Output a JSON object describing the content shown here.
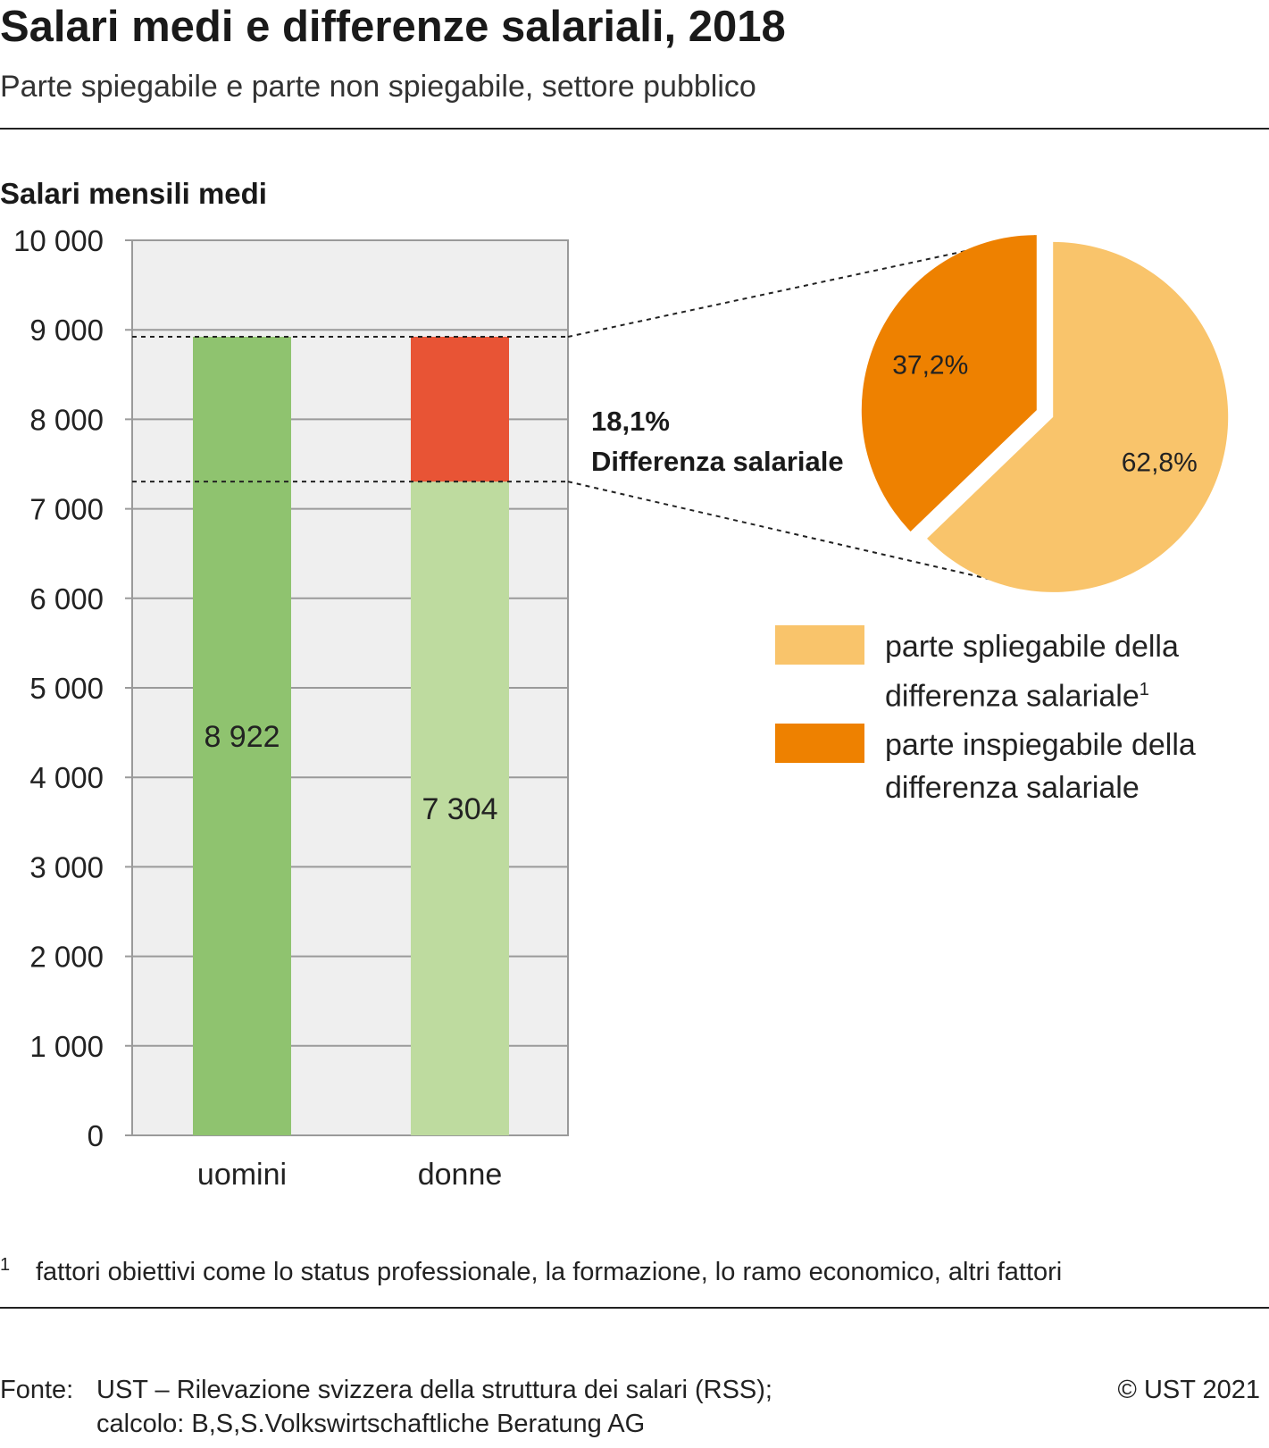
{
  "header": {
    "title": "Salari medi e differenze salariali, 2018",
    "subtitle": "Parte spiegabile e parte non spiegabile, settore pubblico"
  },
  "chart_data": [
    {
      "type": "bar",
      "ylabel": "Salari mensili medi",
      "ylim": [
        0,
        10000
      ],
      "yticks": [
        0,
        1000,
        2000,
        3000,
        4000,
        5000,
        6000,
        7000,
        8000,
        9000,
        10000
      ],
      "ytick_labels": [
        "0",
        "1 000",
        "2 000",
        "3 000",
        "4 000",
        "5 000",
        "6 000",
        "7 000",
        "8 000",
        "9 000",
        "10 000"
      ],
      "categories": [
        "uomini",
        "donne"
      ],
      "values": [
        8922,
        7304
      ],
      "value_labels": [
        "8 922",
        "7 304"
      ],
      "gap": {
        "value": 1618,
        "percent_label": "18,1%",
        "label": "Differenza salariale"
      },
      "colors": {
        "uomini": "#8fc36f",
        "donne": "#bedb9f",
        "gap": "#e85435",
        "plot_bg": "#efefef",
        "grid": "#9a9a9a"
      },
      "grid": true
    },
    {
      "type": "pie",
      "slices": [
        {
          "label": "parte spliegabile della differenza salariale",
          "value": 62.8,
          "value_label": "62,8%",
          "color": "#f9c46b"
        },
        {
          "label": "parte inspiegabile della differenza salariale",
          "value": 37.2,
          "value_label": "37,2%",
          "color": "#ee8100"
        }
      ]
    }
  ],
  "legend": {
    "items": [
      {
        "line1": "parte spliegabile della",
        "line2": "differenza salariale",
        "sup": "1",
        "color": "#f9c46b"
      },
      {
        "line1": "parte inspiegabile della",
        "line2": "differenza salariale",
        "sup": "",
        "color": "#ee8100"
      }
    ]
  },
  "footnote": {
    "mark": "1",
    "text": "fattori obiettivi come lo status professionale, la formazione, lo ramo economico, altri fattori"
  },
  "footer": {
    "source_label": "Fonte:",
    "source_line1": "UST – Rilevazione svizzera della struttura dei salari (RSS);",
    "source_line2": "calcolo: B,S,S.Volkswirtschaftliche Beratung AG",
    "copyright": "© UST 2021"
  }
}
